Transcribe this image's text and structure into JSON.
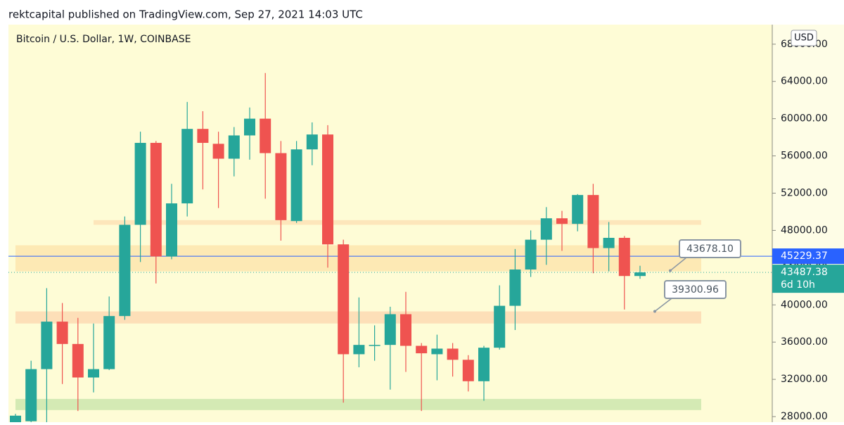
{
  "header": "rektcapital published on TradingView.com, Sep 27, 2021 14:03 UTC",
  "chart_data": {
    "type": "candlestick",
    "title": "Bitcoin / U.S. Dollar, 1W, COINBASE",
    "currency": "USD",
    "up_color": "#26a69a",
    "down_color": "#ef5350",
    "open": [
      27400,
      27500,
      33100,
      38200,
      35800,
      32200,
      33100,
      38800,
      48600,
      57400,
      45200,
      50900,
      58900,
      57300,
      55700,
      58200,
      60000,
      56300,
      49000,
      56700,
      58300,
      46500,
      34700,
      35600,
      35700,
      39000,
      35600,
      34700,
      35300,
      34100,
      31800,
      35400,
      39900,
      43800,
      47000,
      49300,
      48700,
      51800,
      46100,
      47200,
      43100
    ],
    "high": [
      28300,
      34000,
      41800,
      40200,
      38600,
      38000,
      40900,
      49500,
      58600,
      57600,
      53000,
      61800,
      60800,
      58600,
      59100,
      61200,
      64900,
      57600,
      57600,
      59600,
      59300,
      47000,
      40800,
      37800,
      39800,
      41400,
      35900,
      36800,
      35900,
      34600,
      35600,
      42100,
      46000,
      48000,
      50500,
      50100,
      51900,
      53000,
      48900,
      47400,
      44200
    ],
    "low": [
      27000,
      27000,
      26800,
      31500,
      28600,
      30600,
      33000,
      38400,
      44600,
      42300,
      44900,
      49500,
      52400,
      50400,
      53800,
      55600,
      51400,
      46900,
      48800,
      55000,
      44000,
      29500,
      33300,
      34000,
      30900,
      32800,
      28600,
      31900,
      32300,
      30700,
      29700,
      35200,
      37300,
      43000,
      44300,
      45800,
      47900,
      43400,
      43600,
      39500,
      42800
    ],
    "close": [
      28100,
      33100,
      38200,
      35800,
      32200,
      33100,
      38800,
      48600,
      57400,
      45200,
      50900,
      58900,
      57400,
      55700,
      58200,
      60000,
      56300,
      49100,
      56700,
      58300,
      46500,
      34700,
      35700,
      35700,
      39000,
      35600,
      34800,
      35300,
      34100,
      31800,
      35400,
      39900,
      43800,
      47000,
      49300,
      48700,
      51800,
      46100,
      47200,
      43100,
      43487.38
    ],
    "ylim": [
      27400,
      70100
    ],
    "yticks": [
      {
        "value": 28000,
        "label": "28000.00"
      },
      {
        "value": 32000,
        "label": "32000.00"
      },
      {
        "value": 36000,
        "label": "36000.00"
      },
      {
        "value": 40000,
        "label": "40000.00"
      },
      {
        "value": 44000,
        "label": "44000.00"
      },
      {
        "value": 48000,
        "label": "48000.00"
      },
      {
        "value": 52000,
        "label": "52000.00"
      },
      {
        "value": 56000,
        "label": "56000.00"
      },
      {
        "value": 60000,
        "label": "60000.00"
      },
      {
        "value": 64000,
        "label": "64000.00"
      },
      {
        "value": 68000,
        "label": "68000.00"
      }
    ],
    "zones": [
      {
        "from": 48600,
        "to": 49100,
        "color": "#fde3b8"
      },
      {
        "from": 43600,
        "to": 46400,
        "color": "#fde7b0"
      },
      {
        "from": 38000,
        "to": 39300,
        "color": "#fddcb5"
      },
      {
        "from": 28700,
        "to": 29900,
        "color": "#cfe8b0"
      }
    ],
    "horizontal_line": {
      "value": 45229.37,
      "color": "#2962ff"
    },
    "last_price": {
      "value": 43487.38,
      "countdown": "6d 10h",
      "color": "#26a69a"
    },
    "callouts": [
      {
        "value": 43678.1,
        "label": "43678.10"
      },
      {
        "value": 39300.96,
        "label": "39300.96"
      }
    ]
  }
}
